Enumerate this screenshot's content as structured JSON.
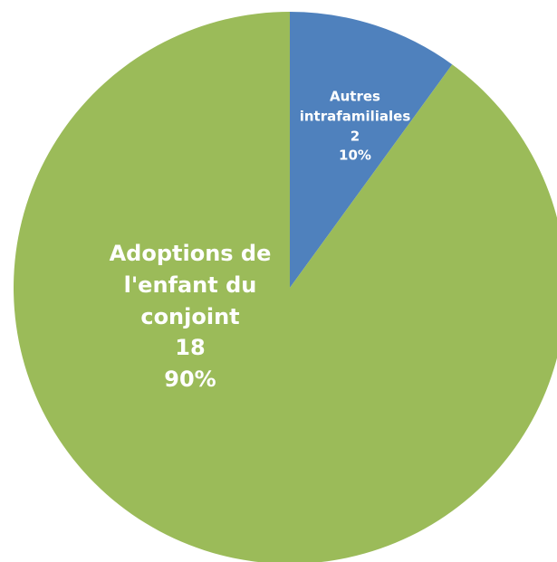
{
  "chart_data": {
    "type": "pie",
    "categories": [
      "Autres intrafamiliales",
      "Adoptions de l'enfant du conjoint"
    ],
    "values": [
      2,
      18
    ],
    "percent_labels": [
      "10%",
      "90%"
    ],
    "colors": [
      "#4f81bd",
      "#9bbb59"
    ],
    "start_angle": 0,
    "direction": "clockwise"
  }
}
